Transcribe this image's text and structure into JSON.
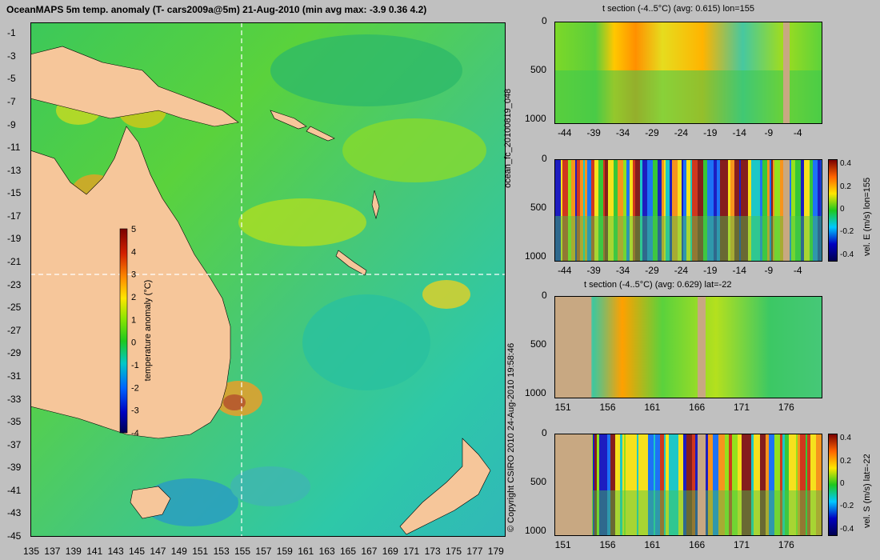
{
  "main_title": "OceanMAPS 5m temp. anomaly (T- cars2009a@5m) 21-Aug-2010 (min avg max: -3.9 0.36 4.2)",
  "side_left_text": "ocean_fc_20100819_048",
  "side_right_text": "© Copyright CSIRO 2010   24-Aug-2010 19:58:46",
  "colors": {
    "background": "#c0c0c0",
    "land": "#f6c69a",
    "section_land": "#c8a882",
    "crosshair": "#ffffff"
  },
  "chart_data": [
    {
      "type": "heatmap",
      "title": "OceanMAPS 5m temp. anomaly (T- cars2009a@5m) 21-Aug-2010 (min avg max: -3.9 0.36 4.2)",
      "x_ticks": [
        "135",
        "137",
        "139",
        "141",
        "143",
        "145",
        "147",
        "149",
        "151",
        "153",
        "155",
        "157",
        "159",
        "161",
        "163",
        "165",
        "167",
        "169",
        "171",
        "173",
        "175",
        "177",
        "179"
      ],
      "y_ticks": [
        "-1",
        "-3",
        "-5",
        "-7",
        "-9",
        "-11",
        "-13",
        "-15",
        "-17",
        "-19",
        "-21",
        "-23",
        "-25",
        "-27",
        "-29",
        "-31",
        "-33",
        "-35",
        "-37",
        "-39",
        "-41",
        "-43",
        "-45"
      ],
      "xlim": [
        135,
        180
      ],
      "ylim": [
        -45,
        0
      ],
      "crosshair": {
        "lon": 155,
        "lat": -22
      },
      "stats": {
        "min": -3.9,
        "avg": 0.36,
        "max": 4.2
      },
      "colorbar": {
        "label": "temperature anomaly (°C)",
        "ticks": [
          "5",
          "4",
          "3",
          "2",
          "1",
          "0",
          "-1",
          "-2",
          "-3",
          "-4"
        ],
        "range": [
          -4,
          5
        ]
      }
    },
    {
      "type": "heatmap",
      "title": "t section (-4..5°C) (avg: 0.615) lon=155",
      "x_ticks": [
        "-44",
        "-39",
        "-34",
        "-29",
        "-24",
        "-19",
        "-14",
        "-9",
        "-4"
      ],
      "y_ticks": [
        "0",
        "500",
        "1000"
      ],
      "xlim": [
        -46,
        0
      ],
      "ylim": [
        1050,
        0
      ],
      "avg": 0.615
    },
    {
      "type": "heatmap",
      "title": "",
      "x_ticks": [
        "-44",
        "-39",
        "-34",
        "-29",
        "-24",
        "-19",
        "-14",
        "-9",
        "-4"
      ],
      "y_ticks": [
        "0",
        "500",
        "1000"
      ],
      "xlim": [
        -46,
        0
      ],
      "ylim": [
        1050,
        0
      ],
      "colorbar": {
        "label": "vel. E (m/s) lon=155",
        "ticks": [
          "0.4",
          "0.2",
          "0",
          "-0.2",
          "-0.4"
        ],
        "range": [
          -0.45,
          0.45
        ]
      }
    },
    {
      "type": "heatmap",
      "title": "t section (-4..5°C) (avg: 0.629) lat=-22",
      "x_ticks": [
        "151",
        "156",
        "161",
        "166",
        "171",
        "176"
      ],
      "y_ticks": [
        "0",
        "500",
        "1000"
      ],
      "xlim": [
        150,
        180
      ],
      "ylim": [
        1050,
        0
      ],
      "avg": 0.629
    },
    {
      "type": "heatmap",
      "title": "",
      "x_ticks": [
        "151",
        "156",
        "161",
        "166",
        "171",
        "176"
      ],
      "y_ticks": [
        "0",
        "500",
        "1000"
      ],
      "xlim": [
        150,
        180
      ],
      "ylim": [
        1050,
        0
      ],
      "colorbar": {
        "label": "vel. S (m/s) lat=-22",
        "ticks": [
          "0.4",
          "0.2",
          "0",
          "-0.2",
          "-0.4"
        ],
        "range": [
          -0.45,
          0.45
        ]
      }
    }
  ]
}
